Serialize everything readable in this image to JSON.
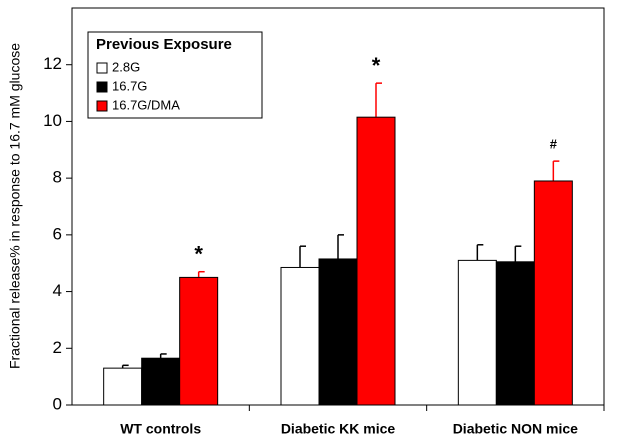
{
  "chart_data": {
    "type": "bar",
    "y_label": "Fractional release% in response to 16.7 mM glucose",
    "legend_title": "Previous Exposure",
    "categories": [
      "WT controls",
      "Diabetic KK mice",
      "Diabetic NON mice"
    ],
    "series": [
      {
        "name": "2.8G",
        "color": "#ffffff",
        "values": [
          1.3,
          4.85,
          5.1
        ],
        "errors": [
          0.1,
          0.75,
          0.55
        ]
      },
      {
        "name": "16.7G",
        "color": "#000000",
        "values": [
          1.65,
          5.15,
          5.05
        ],
        "errors": [
          0.15,
          0.85,
          0.55
        ]
      },
      {
        "name": "16.7G/DMA",
        "color": "#ff0000",
        "values": [
          4.5,
          10.15,
          7.9
        ],
        "errors": [
          0.2,
          1.2,
          0.7
        ],
        "markers": [
          "*",
          "*",
          "#"
        ]
      }
    ],
    "ylim": [
      0,
      14
    ],
    "yticks": [
      0,
      2,
      4,
      6,
      8,
      10,
      12
    ]
  }
}
